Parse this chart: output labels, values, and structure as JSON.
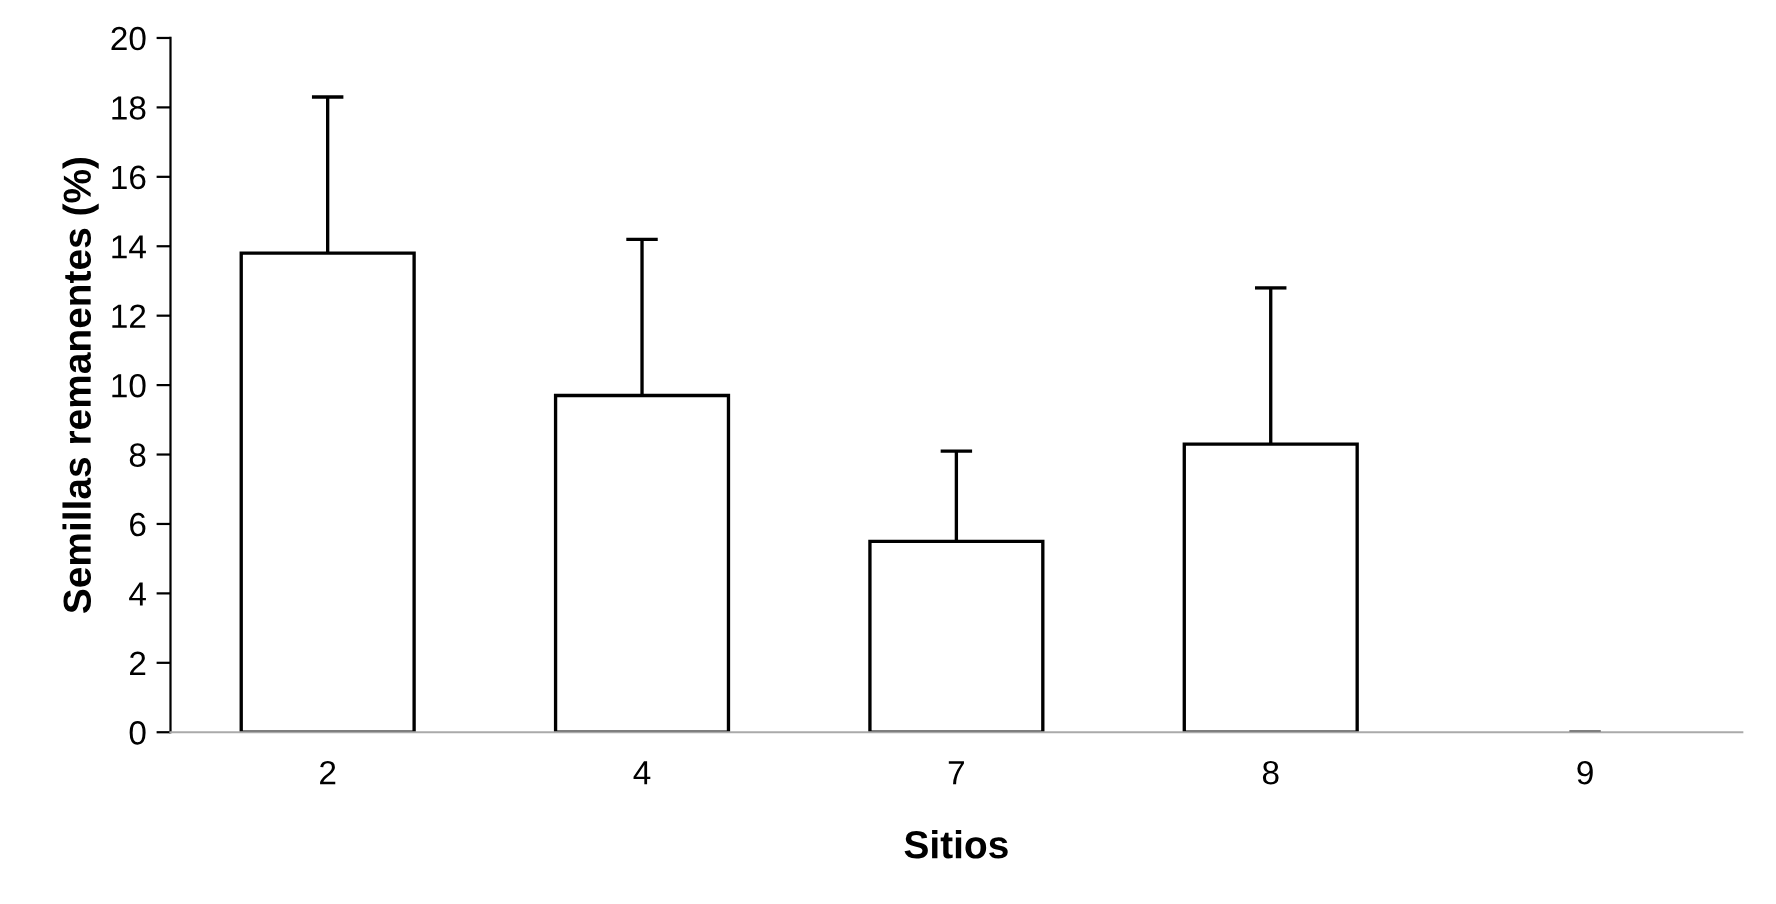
{
  "chart_data": {
    "type": "bar",
    "xlabel": "Sitios",
    "ylabel": "Semillas remanentes (%)",
    "categories": [
      "2",
      "4",
      "7",
      "8",
      "9"
    ],
    "values": [
      13.8,
      9.7,
      5.5,
      8.3,
      0
    ],
    "errors": [
      [
        13.8,
        18.3
      ],
      [
        9.7,
        14.2
      ],
      [
        5.5,
        8.1
      ],
      [
        8.3,
        12.8
      ],
      [
        0,
        0
      ]
    ],
    "color": "#ffffff",
    "ylim": [
      0,
      20
    ],
    "yticks": [
      0,
      2,
      4,
      6,
      8,
      10,
      12,
      14,
      16,
      18,
      20
    ],
    "grid": false,
    "legend": false
  }
}
